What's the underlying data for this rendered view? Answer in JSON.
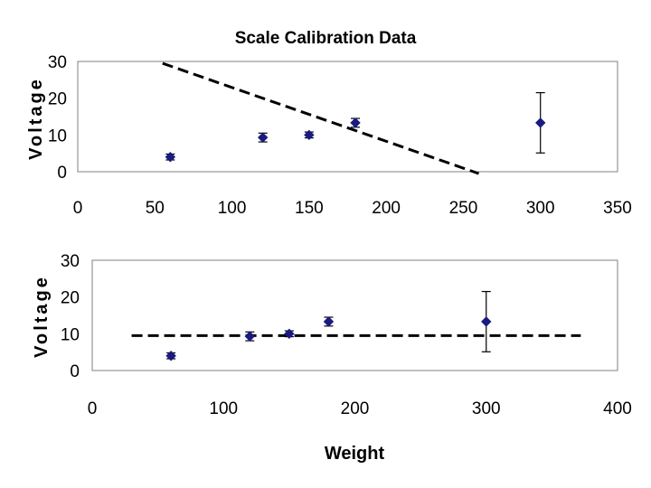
{
  "chart_data": [
    {
      "type": "scatter",
      "title": "Scale Calibration Data",
      "xlabel": "",
      "ylabel": "Voltage",
      "xlim": [
        0,
        350
      ],
      "ylim": [
        0,
        30
      ],
      "xticks": [
        0,
        50,
        100,
        150,
        200,
        250,
        300,
        350
      ],
      "yticks": [
        0,
        10,
        20,
        30
      ],
      "grid": false,
      "legend": "none",
      "colors": {
        "marker": "#1a1a80",
        "fit_line": "#000000",
        "frame": "#808080"
      },
      "series": [
        {
          "x": [
            60,
            120,
            150,
            180,
            300
          ],
          "y": [
            4.0,
            9.3,
            10.0,
            13.3,
            13.3
          ],
          "error": [
            0.8,
            1.2,
            0.8,
            1.2,
            8.2
          ]
        }
      ],
      "fit_line": {
        "style": "dashed",
        "x": [
          55,
          260
        ],
        "y": [
          29.5,
          -0.5
        ]
      }
    },
    {
      "type": "scatter",
      "title": "",
      "xlabel": "Weight",
      "ylabel": "Voltage",
      "xlim": [
        0,
        400
      ],
      "ylim": [
        0,
        30
      ],
      "xticks": [
        0,
        100,
        200,
        300,
        400
      ],
      "yticks": [
        0,
        10,
        20,
        30
      ],
      "grid": false,
      "legend": "none",
      "colors": {
        "marker": "#1a1a80",
        "fit_line": "#000000",
        "frame": "#808080"
      },
      "series": [
        {
          "x": [
            60,
            120,
            150,
            180,
            300
          ],
          "y": [
            4.0,
            9.3,
            10.0,
            13.3,
            13.3
          ],
          "error": [
            0.8,
            1.2,
            0.8,
            1.2,
            8.2
          ]
        }
      ],
      "fit_line": {
        "style": "dashed",
        "x": [
          30,
          372
        ],
        "y": [
          9.5,
          9.5
        ]
      }
    }
  ]
}
